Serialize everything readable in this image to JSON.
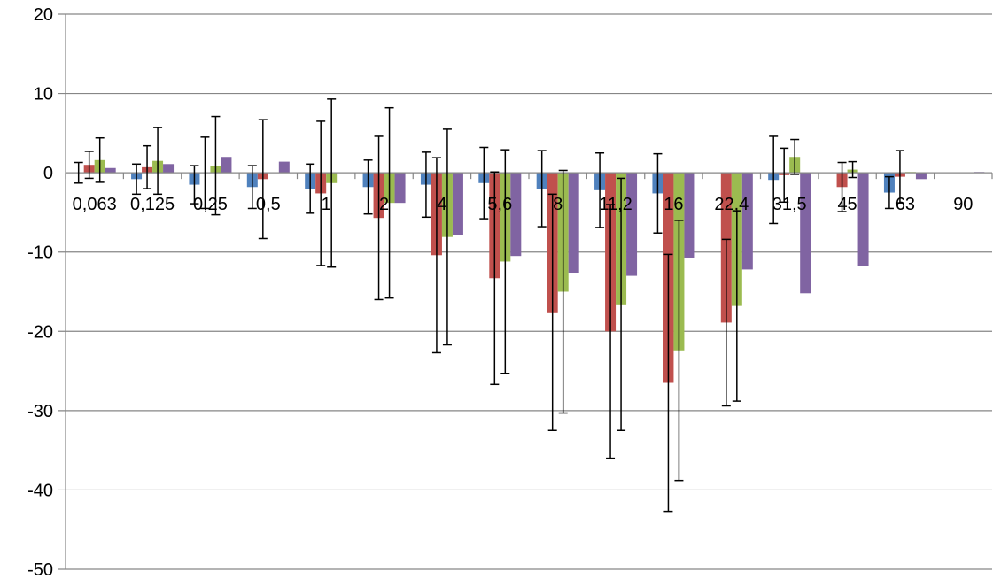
{
  "chart_data": {
    "type": "bar",
    "title": "",
    "xlabel": "",
    "ylabel": "",
    "ylim": [
      -50,
      20
    ],
    "yticks": [
      20,
      10,
      0,
      -10,
      -20,
      -30,
      -40,
      -50
    ],
    "grid": "horizontal",
    "legend": "none",
    "categories": [
      "0,063",
      "0,125",
      "0,25",
      "0,5",
      "1",
      "2",
      "4",
      "5,6",
      "8",
      "11,2",
      "16",
      "22,4",
      "31,5",
      "45",
      "63",
      "90"
    ],
    "series": [
      {
        "color": "#4F81BD",
        "values": [
          0,
          -0.8,
          -1.5,
          -1.8,
          -2.0,
          -1.8,
          -1.5,
          -1.3,
          -2.0,
          -2.2,
          -2.6,
          0,
          -0.9,
          0,
          -2.5,
          0
        ],
        "errors": [
          1.3,
          1.9,
          2.4,
          2.7,
          3.1,
          3.4,
          4.1,
          4.5,
          4.8,
          4.7,
          5.0,
          0,
          5.5,
          0,
          2.0,
          0
        ]
      },
      {
        "color": "#C0504D",
        "values": [
          1.0,
          0.7,
          0,
          -0.8,
          -2.6,
          -5.7,
          -10.4,
          -13.3,
          -17.6,
          -20.0,
          -26.5,
          -18.9,
          -0.3,
          -1.8,
          -0.5,
          0
        ],
        "errors": [
          1.7,
          2.7,
          4.5,
          7.5,
          9.1,
          10.3,
          12.3,
          13.4,
          14.9,
          16.0,
          16.2,
          10.5,
          3.4,
          3.1,
          3.3,
          0
        ]
      },
      {
        "color": "#9BBB50",
        "values": [
          1.6,
          1.5,
          0.9,
          0,
          -1.3,
          -3.8,
          -8.1,
          -11.2,
          -15.0,
          -16.6,
          -22.4,
          -16.8,
          2.0,
          0.4,
          0.1,
          0
        ],
        "errors": [
          2.8,
          4.2,
          6.2,
          0,
          10.6,
          12.0,
          13.6,
          14.1,
          15.3,
          15.9,
          16.4,
          12.0,
          2.2,
          1.0,
          0,
          0
        ]
      },
      {
        "color": "#8064A2",
        "values": [
          0.6,
          1.1,
          2.0,
          1.4,
          0,
          -3.8,
          -7.8,
          -10.5,
          -12.6,
          -13.0,
          -10.7,
          -12.2,
          -15.2,
          -11.8,
          -0.8,
          0.1
        ],
        "errors": [
          0,
          0,
          0,
          0,
          0,
          0,
          0,
          0,
          0,
          0,
          0,
          0,
          0,
          0,
          0,
          0
        ]
      }
    ]
  }
}
